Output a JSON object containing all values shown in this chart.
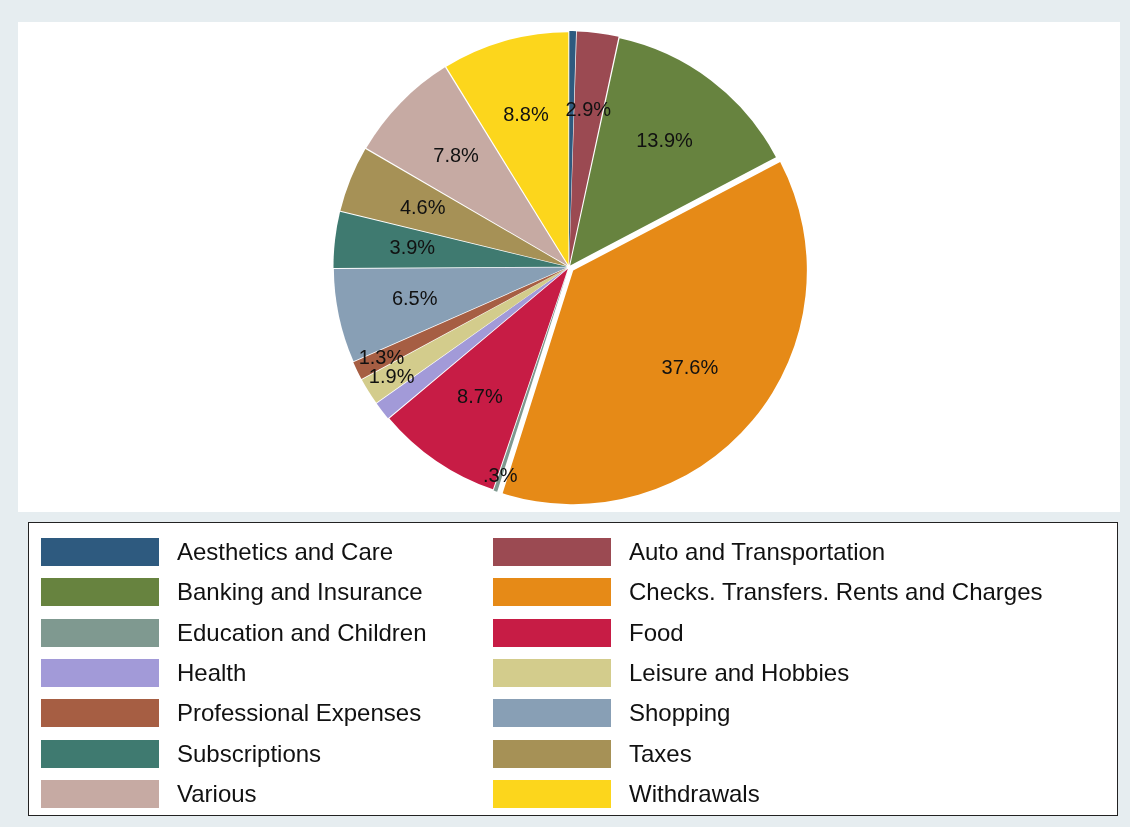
{
  "chart_data": {
    "type": "pie",
    "categories": [
      "Aesthetics and Care",
      "Auto and Transportation",
      "Banking and Insurance",
      "Checks. Transfers. Rents and Charges",
      "Education and Children",
      "Food",
      "Health",
      "Leisure and Hobbies",
      "Professional Expenses",
      "Shopping",
      "Subscriptions",
      "Taxes",
      "Various",
      "Withdrawals"
    ],
    "values": [
      0.5,
      2.9,
      13.9,
      37.6,
      0.3,
      8.7,
      1.3,
      1.9,
      1.3,
      6.5,
      3.9,
      4.6,
      7.8,
      8.8
    ],
    "colors": [
      "#2e5a7f",
      "#9b4a52",
      "#67833f",
      "#e68a17",
      "#7f9990",
      "#c71c45",
      "#a29ad8",
      "#d3cc8c",
      "#a65e43",
      "#889fb5",
      "#3f7a70",
      "#a69156",
      "#c6aaa3",
      "#fcd61c"
    ],
    "value_labels": [
      null,
      "2.9%",
      "13.9%",
      "37.6%",
      ".3%",
      "8.7%",
      null,
      "1.9%",
      "1.3%",
      "6.5%",
      "3.9%",
      "4.6%",
      "7.8%",
      "8.8%"
    ],
    "legend": "bottom"
  }
}
